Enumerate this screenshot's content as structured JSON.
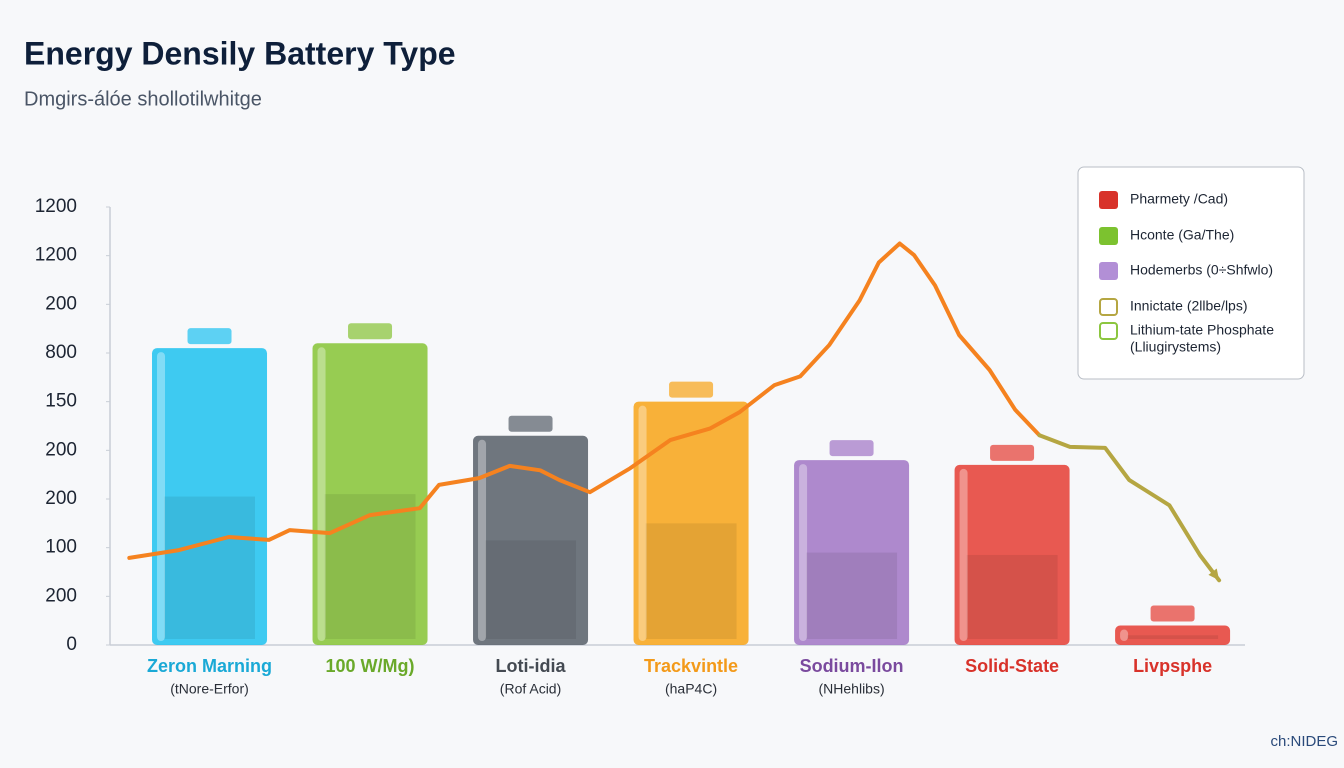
{
  "chart_data": {
    "type": "bar",
    "title": "Energy Densily Battery Type",
    "subtitle": "Dmgirs-álóe shollotilwhitge",
    "watermark": "ch:NIDEG",
    "categories": [
      "Zeron Marning",
      "100 W/Mg)",
      "Loti-idia",
      "Trackvintle",
      "Sodium-Ilon",
      "Solid-State",
      "Livpsphe"
    ],
    "sublabels": [
      "(tNore-Erfor)",
      null,
      "(Rof Acid)",
      "(haP4C)",
      "(NHehlibs)",
      null,
      null
    ],
    "values": [
      6.1,
      6.2,
      4.3,
      5.0,
      3.8,
      3.7,
      0.4
    ],
    "colors": [
      "#29c4f0",
      "#8cc63f",
      "#5f6770",
      "#f7a823",
      "#a57cc8",
      "#e5473e",
      "#e5473e"
    ],
    "label_colors": [
      "#1aa9d6",
      "#6aa92a",
      "#444a52",
      "#f39a1a",
      "#7a4a9e",
      "#d8322a",
      "#d8322a"
    ],
    "xlim": [
      -0.62,
      6.42
    ],
    "ylim": [
      0,
      9
    ],
    "yticks": [
      {
        "value": 0,
        "label": "0"
      },
      {
        "value": 1,
        "label": "200"
      },
      {
        "value": 2,
        "label": "100"
      },
      {
        "value": 3,
        "label": "200"
      },
      {
        "value": 4,
        "label": "200"
      },
      {
        "value": 5,
        "label": "150"
      },
      {
        "value": 6,
        "label": "800"
      },
      {
        "value": 7,
        "label": "200"
      },
      {
        "value": 8,
        "label": "1200"
      },
      {
        "value": 9,
        "label": "1200"
      }
    ],
    "grid": false,
    "lines": [
      {
        "color": "#f5821f",
        "x": [
          -0.5,
          -0.19,
          0.12,
          0.37,
          0.5,
          0.75,
          1.0,
          1.31,
          1.43,
          1.68,
          1.87,
          2.06,
          2.18,
          2.37,
          2.62,
          2.87,
          3.12,
          3.3,
          3.52,
          3.68,
          3.86,
          4.05,
          4.17,
          4.3,
          4.39,
          4.52,
          4.67,
          4.86,
          5.02,
          5.17
        ],
        "values": [
          1.79,
          1.95,
          2.22,
          2.16,
          2.36,
          2.3,
          2.67,
          2.81,
          3.29,
          3.43,
          3.68,
          3.59,
          3.39,
          3.14,
          3.63,
          4.21,
          4.45,
          4.78,
          5.34,
          5.52,
          6.16,
          7.08,
          7.86,
          8.25,
          8.01,
          7.39,
          6.37,
          5.65,
          4.83,
          4.31
        ]
      },
      {
        "color": "#b5a642",
        "x": [
          5.17,
          5.36,
          5.58,
          5.73,
          5.98,
          6.17,
          6.29
        ],
        "values": [
          4.31,
          4.07,
          4.05,
          3.39,
          2.87,
          1.85,
          1.33
        ]
      }
    ],
    "legend": [
      {
        "label": "Pharmety /Cad)",
        "color": "#d8322a",
        "style": "filled"
      },
      {
        "label": "Hconte (Ga/The)",
        "color": "#7cc22f",
        "style": "filled"
      },
      {
        "label": "Hodemerbs (0÷Shfwlo)",
        "color": "#b28fd6",
        "style": "filled"
      },
      {
        "label": "Innictate (2llbe/lps)",
        "color": "#b5a642",
        "style": "outline"
      },
      {
        "label": "Lithium-tate Phosphate",
        "sublabel": "(Lliugirystems)",
        "color": "#8cc63f",
        "style": "outline"
      }
    ]
  }
}
